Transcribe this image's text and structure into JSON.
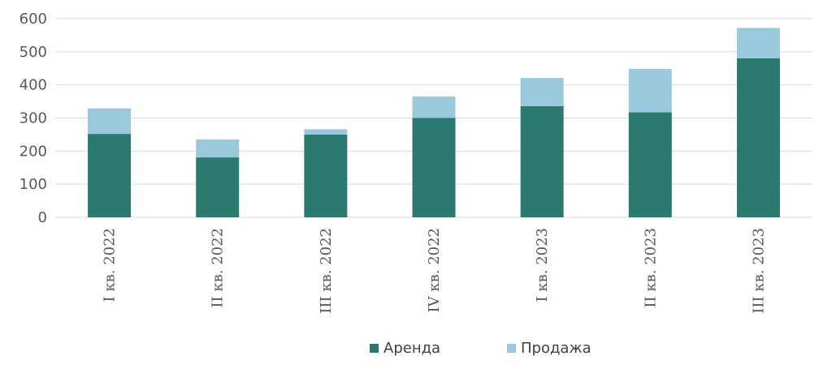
{
  "chart_data": {
    "type": "bar",
    "stacked": true,
    "categories": [
      "I кв. 2022",
      "II кв. 2022",
      "III кв. 2022",
      "IV кв. 2022",
      "I кв. 2023",
      "II кв. 2023",
      "III кв. 2023"
    ],
    "series": [
      {
        "name": "Аренда",
        "color": "#2b7a70",
        "values": [
          252,
          181,
          250,
          300,
          336,
          317,
          480
        ]
      },
      {
        "name": "Продажа",
        "color": "#9ac9de",
        "values": [
          77,
          54,
          16,
          65,
          85,
          131,
          92
        ]
      }
    ],
    "y_ticks": [
      "0",
      "100",
      "200",
      "300",
      "400",
      "500",
      "600"
    ],
    "ylim": [
      0,
      600
    ],
    "grid": true,
    "gridline_color": "#d9d9d9",
    "legend_position": "bottom",
    "title": "",
    "xlabel": "",
    "ylabel": ""
  }
}
